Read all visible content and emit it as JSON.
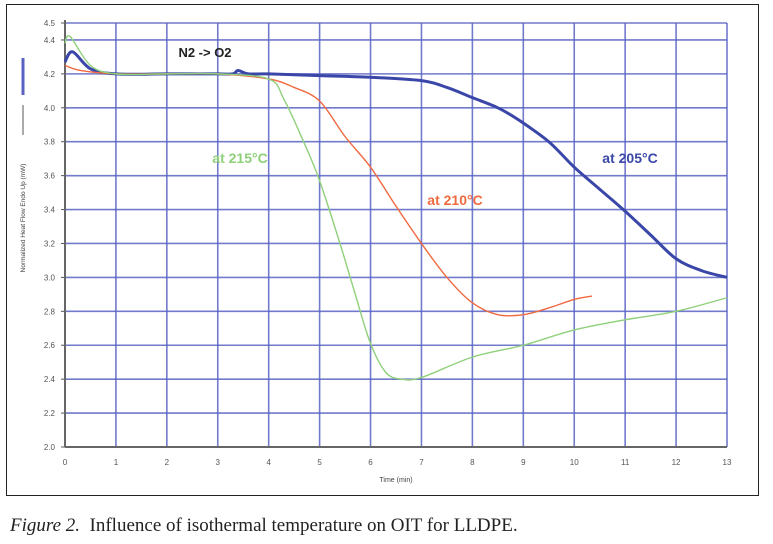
{
  "chart_data": {
    "type": "line",
    "title": "",
    "xlabel": "Time (min)",
    "ylabel": "Normalized Heat Flow Endo Up (mW)",
    "xlim": [
      0,
      13
    ],
    "ylim": [
      2.0,
      4.5
    ],
    "xticks": [
      "0",
      "1",
      "2",
      "3",
      "4",
      "5",
      "6",
      "7",
      "8",
      "9",
      "10",
      "11",
      "12",
      "13"
    ],
    "yticks": [
      {
        "v": 4.5,
        "label": "4.5"
      },
      {
        "v": 4.4,
        "label": "4.4"
      },
      {
        "v": 4.2,
        "label": "4.2"
      },
      {
        "v": 4.0,
        "label": "4.0"
      },
      {
        "v": 3.8,
        "label": "3.8"
      },
      {
        "v": 3.6,
        "label": "3.6"
      },
      {
        "v": 3.4,
        "label": "3.4"
      },
      {
        "v": 3.2,
        "label": "3.2"
      },
      {
        "v": 3.0,
        "label": "3.0"
      },
      {
        "v": 2.8,
        "label": "2.8"
      },
      {
        "v": 2.6,
        "label": "2.6"
      },
      {
        "v": 2.4,
        "label": "2.4"
      },
      {
        "v": 2.2,
        "label": "2.2"
      },
      {
        "v": 2.0,
        "label": "2.0"
      }
    ],
    "grid": true,
    "grid_color": "#5a63c4",
    "annotation": "N2 -> O2",
    "series": [
      {
        "name": "at 205°C",
        "color": "#3a47a8",
        "x": [
          0,
          0.15,
          0.5,
          1,
          2,
          3,
          3.3,
          3.4,
          3.6,
          4,
          5,
          6,
          7,
          7.5,
          8,
          8.5,
          8.9,
          9.5,
          10,
          10.5,
          11,
          11.5,
          12,
          12.5,
          13
        ],
        "y": [
          4.27,
          4.33,
          4.23,
          4.2,
          4.2,
          4.2,
          4.2,
          4.22,
          4.2,
          4.2,
          4.19,
          4.18,
          4.16,
          4.12,
          4.06,
          4.0,
          3.93,
          3.8,
          3.65,
          3.52,
          3.39,
          3.25,
          3.11,
          3.04,
          3.0
        ]
      },
      {
        "name": "at 210°C",
        "color": "#f06a40",
        "x": [
          0,
          0.3,
          1,
          2,
          3,
          4,
          4.5,
          5,
          5.5,
          6,
          6.5,
          7,
          7.5,
          8,
          8.5,
          9,
          9.5,
          10,
          10.35
        ],
        "y": [
          4.25,
          4.22,
          4.2,
          4.2,
          4.2,
          4.17,
          4.12,
          4.04,
          3.83,
          3.65,
          3.42,
          3.2,
          3.0,
          2.85,
          2.78,
          2.78,
          2.82,
          2.87,
          2.89
        ]
      },
      {
        "name": "at 215°C",
        "color": "#8fd07a",
        "x": [
          0,
          0.1,
          0.5,
          1,
          2,
          3,
          4,
          4.3,
          4.7,
          5,
          5.4,
          5.7,
          6,
          6.3,
          6.6,
          7,
          8,
          9,
          10,
          11,
          12,
          13
        ],
        "y": [
          4.38,
          4.42,
          4.25,
          4.2,
          4.2,
          4.2,
          4.17,
          4.05,
          3.79,
          3.57,
          3.2,
          2.9,
          2.61,
          2.44,
          2.4,
          2.41,
          2.53,
          2.6,
          2.69,
          2.75,
          2.8,
          2.88
        ]
      }
    ]
  },
  "caption": {
    "prefix": "Figure 2.",
    "text": "Influence of isothermal temperature on OIT for LLDPE."
  }
}
